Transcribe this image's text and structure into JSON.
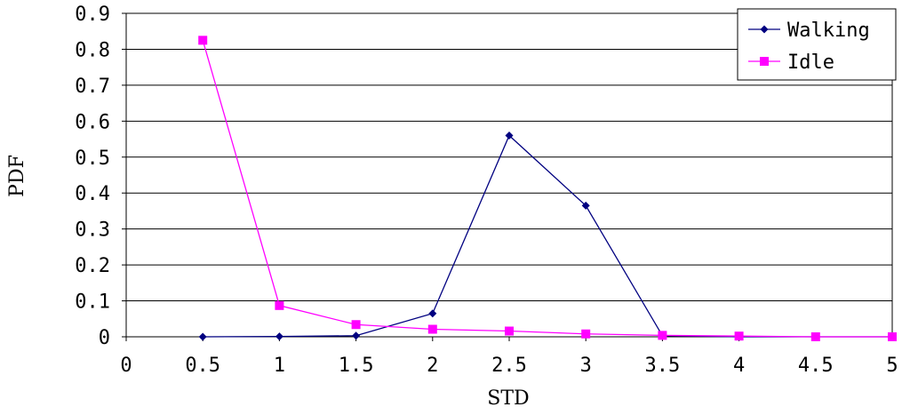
{
  "chart_data": {
    "type": "line",
    "title": "",
    "xlabel": "STD",
    "ylabel": "PDF",
    "x_ticks": [
      "0",
      "0.5",
      "1",
      "1.5",
      "2",
      "2.5",
      "3",
      "3.5",
      "4",
      "4.5",
      "5"
    ],
    "y_ticks": [
      "0",
      "0.1",
      "0.2",
      "0.3",
      "0.4",
      "0.5",
      "0.6",
      "0.7",
      "0.8",
      "0.9"
    ],
    "xlim": [
      0,
      5
    ],
    "ylim": [
      0,
      0.9
    ],
    "grid": "horizontal",
    "legend_position": "top-right",
    "series": [
      {
        "name": "Walking",
        "color": "#000080",
        "marker": "diamond",
        "x": [
          0.5,
          1,
          1.5,
          2,
          2.5,
          3,
          3.5,
          4,
          4.5,
          5
        ],
        "values": [
          0.0,
          0.001,
          0.003,
          0.065,
          0.56,
          0.365,
          0.003,
          0.0,
          0.0,
          0.0
        ]
      },
      {
        "name": "Idle",
        "color": "#FF00FF",
        "marker": "square",
        "x": [
          0.5,
          1,
          1.5,
          2,
          2.5,
          3,
          3.5,
          4,
          4.5,
          5
        ],
        "values": [
          0.825,
          0.087,
          0.034,
          0.021,
          0.016,
          0.008,
          0.004,
          0.002,
          0.0,
          0.0
        ]
      }
    ]
  }
}
